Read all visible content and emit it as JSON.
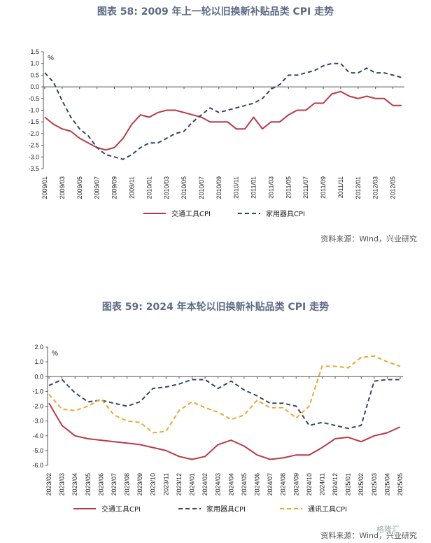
{
  "charts": [
    {
      "title": "图表 58: 2009 年上一轮以旧换新补贴品类 CPI 走势",
      "source": "资料来源：Wind，兴业研究",
      "unit": "%"
    },
    {
      "title": "图表 59: 2024 年本轮以旧换新补贴品类 CPI 走势",
      "source": "资料来源：Wind，兴业研究",
      "unit": "%"
    }
  ],
  "colors": {
    "transport": "#b83a46",
    "household": "#354766",
    "telecom": "#e8a92c"
  },
  "watermark": "格隆汇",
  "chart_data": [
    {
      "type": "line",
      "title": "图表 58: 2009 年上一轮以旧换新补贴品类 CPI 走势",
      "ylabel": "%",
      "ylim": [
        -3.5,
        1.5
      ],
      "yticks": [
        1.5,
        1.0,
        0.5,
        0.0,
        -0.5,
        -1.0,
        -1.5,
        -2.0,
        -2.5,
        -3.0,
        -3.5
      ],
      "x": [
        "2009/01",
        "2009/02",
        "2009/03",
        "2009/04",
        "2009/05",
        "2009/06",
        "2009/07",
        "2009/08",
        "2009/09",
        "2009/10",
        "2009/11",
        "2009/12",
        "2010/01",
        "2010/02",
        "2010/03",
        "2010/04",
        "2010/05",
        "2010/06",
        "2010/07",
        "2010/08",
        "2010/09",
        "2010/10",
        "2010/11",
        "2010/12",
        "2011/01",
        "2011/02",
        "2011/03",
        "2011/04",
        "2011/05",
        "2011/06",
        "2011/07",
        "2011/08",
        "2011/09",
        "2011/10",
        "2011/11",
        "2011/12",
        "2012/01",
        "2012/02",
        "2012/03",
        "2012/04",
        "2012/05",
        "2012/06"
      ],
      "xticklabels": [
        "2009/01",
        "2009/03",
        "2009/05",
        "2009/07",
        "2009/09",
        "2009/11",
        "2010/01",
        "2010/03",
        "2010/05",
        "2010/07",
        "2010/09",
        "2010/11",
        "2011/01",
        "2011/03",
        "2011/05",
        "2011/07",
        "2011/09",
        "2011/11",
        "2012/01",
        "2012/03",
        "2012/05"
      ],
      "series": [
        {
          "name": "交通工具CPI",
          "style": "solid",
          "color": "#b83a46",
          "values": [
            -1.3,
            -1.6,
            -1.8,
            -1.9,
            -2.2,
            -2.4,
            -2.6,
            -2.7,
            -2.6,
            -2.2,
            -1.6,
            -1.2,
            -1.3,
            -1.1,
            -1.0,
            -1.0,
            -1.1,
            -1.2,
            -1.3,
            -1.5,
            -1.5,
            -1.5,
            -1.8,
            -1.8,
            -1.3,
            -1.8,
            -1.5,
            -1.5,
            -1.2,
            -1.0,
            -1.0,
            -0.7,
            -0.7,
            -0.3,
            -0.2,
            -0.4,
            -0.5,
            -0.4,
            -0.5,
            -0.5,
            -0.8,
            -0.8
          ]
        },
        {
          "name": "家用器具CPI",
          "style": "dashed",
          "color": "#354766",
          "values": [
            0.6,
            0.2,
            -0.6,
            -1.3,
            -1.8,
            -2.1,
            -2.6,
            -2.9,
            -3.0,
            -3.1,
            -2.9,
            -2.6,
            -2.4,
            -2.4,
            -2.2,
            -2.0,
            -1.9,
            -1.5,
            -1.2,
            -0.9,
            -1.1,
            -1.0,
            -0.9,
            -0.8,
            -0.7,
            -0.5,
            -0.1,
            0.1,
            0.5,
            0.5,
            0.6,
            0.7,
            0.9,
            1.0,
            1.0,
            0.6,
            0.6,
            0.8,
            0.6,
            0.6,
            0.5,
            0.4
          ]
        }
      ]
    },
    {
      "type": "line",
      "title": "图表 59: 2024 年本轮以旧换新补贴品类 CPI 走势",
      "ylabel": "%",
      "ylim": [
        -6.0,
        2.0
      ],
      "yticks": [
        2.0,
        1.0,
        0.0,
        -1.0,
        -2.0,
        -3.0,
        -4.0,
        -5.0,
        -6.0
      ],
      "x": [
        "2023/02",
        "2023/03",
        "2023/04",
        "2023/05",
        "2023/06",
        "2023/07",
        "2023/08",
        "2023/09",
        "2023/10",
        "2023/11",
        "2023/12",
        "2024/01",
        "2024/02",
        "2024/03",
        "2024/04",
        "2024/05",
        "2024/06",
        "2024/07",
        "2024/08",
        "2024/09",
        "2024/10",
        "2024/11",
        "2024/12",
        "2025/01",
        "2025/02",
        "2025/03",
        "2025/04",
        "2025/05"
      ],
      "xticklabels": [
        "2023/02",
        "2023/03",
        "2023/04",
        "2023/05",
        "2023/06",
        "2023/07",
        "2023/08",
        "2023/09",
        "2023/10",
        "2023/11",
        "2023/12",
        "2024/01",
        "2024/02",
        "2024/03",
        "2024/04",
        "2024/05",
        "2024/06",
        "2024/07",
        "2024/08",
        "2024/09",
        "2024/10",
        "2024/11",
        "2024/12",
        "2025/01",
        "2025/02",
        "2025/03",
        "2025/04",
        "2025/05"
      ],
      "series": [
        {
          "name": "交通工具CPI",
          "style": "solid",
          "color": "#b83a46",
          "values": [
            -1.8,
            -3.3,
            -4.0,
            -4.2,
            -4.3,
            -4.4,
            -4.5,
            -4.6,
            -4.8,
            -5.0,
            -5.4,
            -5.6,
            -5.4,
            -4.6,
            -4.3,
            -4.7,
            -5.3,
            -5.6,
            -5.5,
            -5.3,
            -5.3,
            -4.8,
            -4.2,
            -4.1,
            -4.4,
            -4.0,
            -3.8,
            -3.4
          ]
        },
        {
          "name": "家用器具CPI",
          "style": "dashed",
          "color": "#354766",
          "values": [
            -0.6,
            -0.2,
            -1.1,
            -1.7,
            -1.6,
            -1.8,
            -2.0,
            -1.7,
            -0.8,
            -0.7,
            -0.5,
            -0.2,
            -0.2,
            -0.8,
            -0.3,
            -0.9,
            -1.3,
            -1.8,
            -1.8,
            -2.0,
            -3.3,
            -3.1,
            -3.3,
            -3.5,
            -3.3,
            -0.3,
            -0.2,
            -0.2
          ]
        },
        {
          "name": "通讯工具CPI",
          "style": "dashed",
          "color": "#e8a92c",
          "values": [
            -1.2,
            -2.2,
            -2.3,
            -2.0,
            -1.5,
            -2.6,
            -3.0,
            -3.1,
            -3.8,
            -3.7,
            -2.3,
            -1.7,
            -2.1,
            -2.4,
            -2.9,
            -2.6,
            -1.6,
            -2.1,
            -2.1,
            -2.8,
            -2.0,
            0.7,
            0.7,
            0.6,
            1.3,
            1.4,
            1.0,
            0.7
          ]
        }
      ]
    }
  ]
}
